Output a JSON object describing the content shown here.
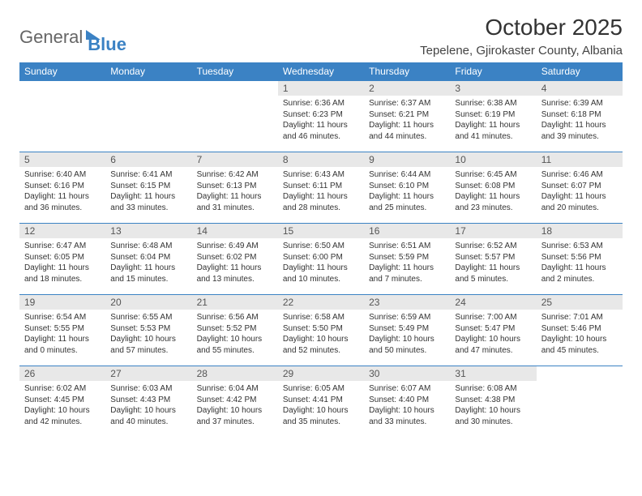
{
  "logo": {
    "text1": "General",
    "text2": "Blue"
  },
  "title": "October 2025",
  "location": "Tepelene, Gjirokaster County, Albania",
  "colors": {
    "accent": "#3b82c4",
    "dayHeaderBg": "#e8e8e8",
    "text": "#333333",
    "bg": "#ffffff"
  },
  "dayNames": [
    "Sunday",
    "Monday",
    "Tuesday",
    "Wednesday",
    "Thursday",
    "Friday",
    "Saturday"
  ],
  "weeks": [
    [
      null,
      null,
      null,
      {
        "n": "1",
        "sr": "6:36 AM",
        "ss": "6:23 PM",
        "dl": "11 hours and 46 minutes."
      },
      {
        "n": "2",
        "sr": "6:37 AM",
        "ss": "6:21 PM",
        "dl": "11 hours and 44 minutes."
      },
      {
        "n": "3",
        "sr": "6:38 AM",
        "ss": "6:19 PM",
        "dl": "11 hours and 41 minutes."
      },
      {
        "n": "4",
        "sr": "6:39 AM",
        "ss": "6:18 PM",
        "dl": "11 hours and 39 minutes."
      }
    ],
    [
      {
        "n": "5",
        "sr": "6:40 AM",
        "ss": "6:16 PM",
        "dl": "11 hours and 36 minutes."
      },
      {
        "n": "6",
        "sr": "6:41 AM",
        "ss": "6:15 PM",
        "dl": "11 hours and 33 minutes."
      },
      {
        "n": "7",
        "sr": "6:42 AM",
        "ss": "6:13 PM",
        "dl": "11 hours and 31 minutes."
      },
      {
        "n": "8",
        "sr": "6:43 AM",
        "ss": "6:11 PM",
        "dl": "11 hours and 28 minutes."
      },
      {
        "n": "9",
        "sr": "6:44 AM",
        "ss": "6:10 PM",
        "dl": "11 hours and 25 minutes."
      },
      {
        "n": "10",
        "sr": "6:45 AM",
        "ss": "6:08 PM",
        "dl": "11 hours and 23 minutes."
      },
      {
        "n": "11",
        "sr": "6:46 AM",
        "ss": "6:07 PM",
        "dl": "11 hours and 20 minutes."
      }
    ],
    [
      {
        "n": "12",
        "sr": "6:47 AM",
        "ss": "6:05 PM",
        "dl": "11 hours and 18 minutes."
      },
      {
        "n": "13",
        "sr": "6:48 AM",
        "ss": "6:04 PM",
        "dl": "11 hours and 15 minutes."
      },
      {
        "n": "14",
        "sr": "6:49 AM",
        "ss": "6:02 PM",
        "dl": "11 hours and 13 minutes."
      },
      {
        "n": "15",
        "sr": "6:50 AM",
        "ss": "6:00 PM",
        "dl": "11 hours and 10 minutes."
      },
      {
        "n": "16",
        "sr": "6:51 AM",
        "ss": "5:59 PM",
        "dl": "11 hours and 7 minutes."
      },
      {
        "n": "17",
        "sr": "6:52 AM",
        "ss": "5:57 PM",
        "dl": "11 hours and 5 minutes."
      },
      {
        "n": "18",
        "sr": "6:53 AM",
        "ss": "5:56 PM",
        "dl": "11 hours and 2 minutes."
      }
    ],
    [
      {
        "n": "19",
        "sr": "6:54 AM",
        "ss": "5:55 PM",
        "dl": "11 hours and 0 minutes."
      },
      {
        "n": "20",
        "sr": "6:55 AM",
        "ss": "5:53 PM",
        "dl": "10 hours and 57 minutes."
      },
      {
        "n": "21",
        "sr": "6:56 AM",
        "ss": "5:52 PM",
        "dl": "10 hours and 55 minutes."
      },
      {
        "n": "22",
        "sr": "6:58 AM",
        "ss": "5:50 PM",
        "dl": "10 hours and 52 minutes."
      },
      {
        "n": "23",
        "sr": "6:59 AM",
        "ss": "5:49 PM",
        "dl": "10 hours and 50 minutes."
      },
      {
        "n": "24",
        "sr": "7:00 AM",
        "ss": "5:47 PM",
        "dl": "10 hours and 47 minutes."
      },
      {
        "n": "25",
        "sr": "7:01 AM",
        "ss": "5:46 PM",
        "dl": "10 hours and 45 minutes."
      }
    ],
    [
      {
        "n": "26",
        "sr": "6:02 AM",
        "ss": "4:45 PM",
        "dl": "10 hours and 42 minutes."
      },
      {
        "n": "27",
        "sr": "6:03 AM",
        "ss": "4:43 PM",
        "dl": "10 hours and 40 minutes."
      },
      {
        "n": "28",
        "sr": "6:04 AM",
        "ss": "4:42 PM",
        "dl": "10 hours and 37 minutes."
      },
      {
        "n": "29",
        "sr": "6:05 AM",
        "ss": "4:41 PM",
        "dl": "10 hours and 35 minutes."
      },
      {
        "n": "30",
        "sr": "6:07 AM",
        "ss": "4:40 PM",
        "dl": "10 hours and 33 minutes."
      },
      {
        "n": "31",
        "sr": "6:08 AM",
        "ss": "4:38 PM",
        "dl": "10 hours and 30 minutes."
      },
      null
    ]
  ],
  "labels": {
    "sunrise": "Sunrise:",
    "sunset": "Sunset:",
    "daylight": "Daylight:"
  }
}
